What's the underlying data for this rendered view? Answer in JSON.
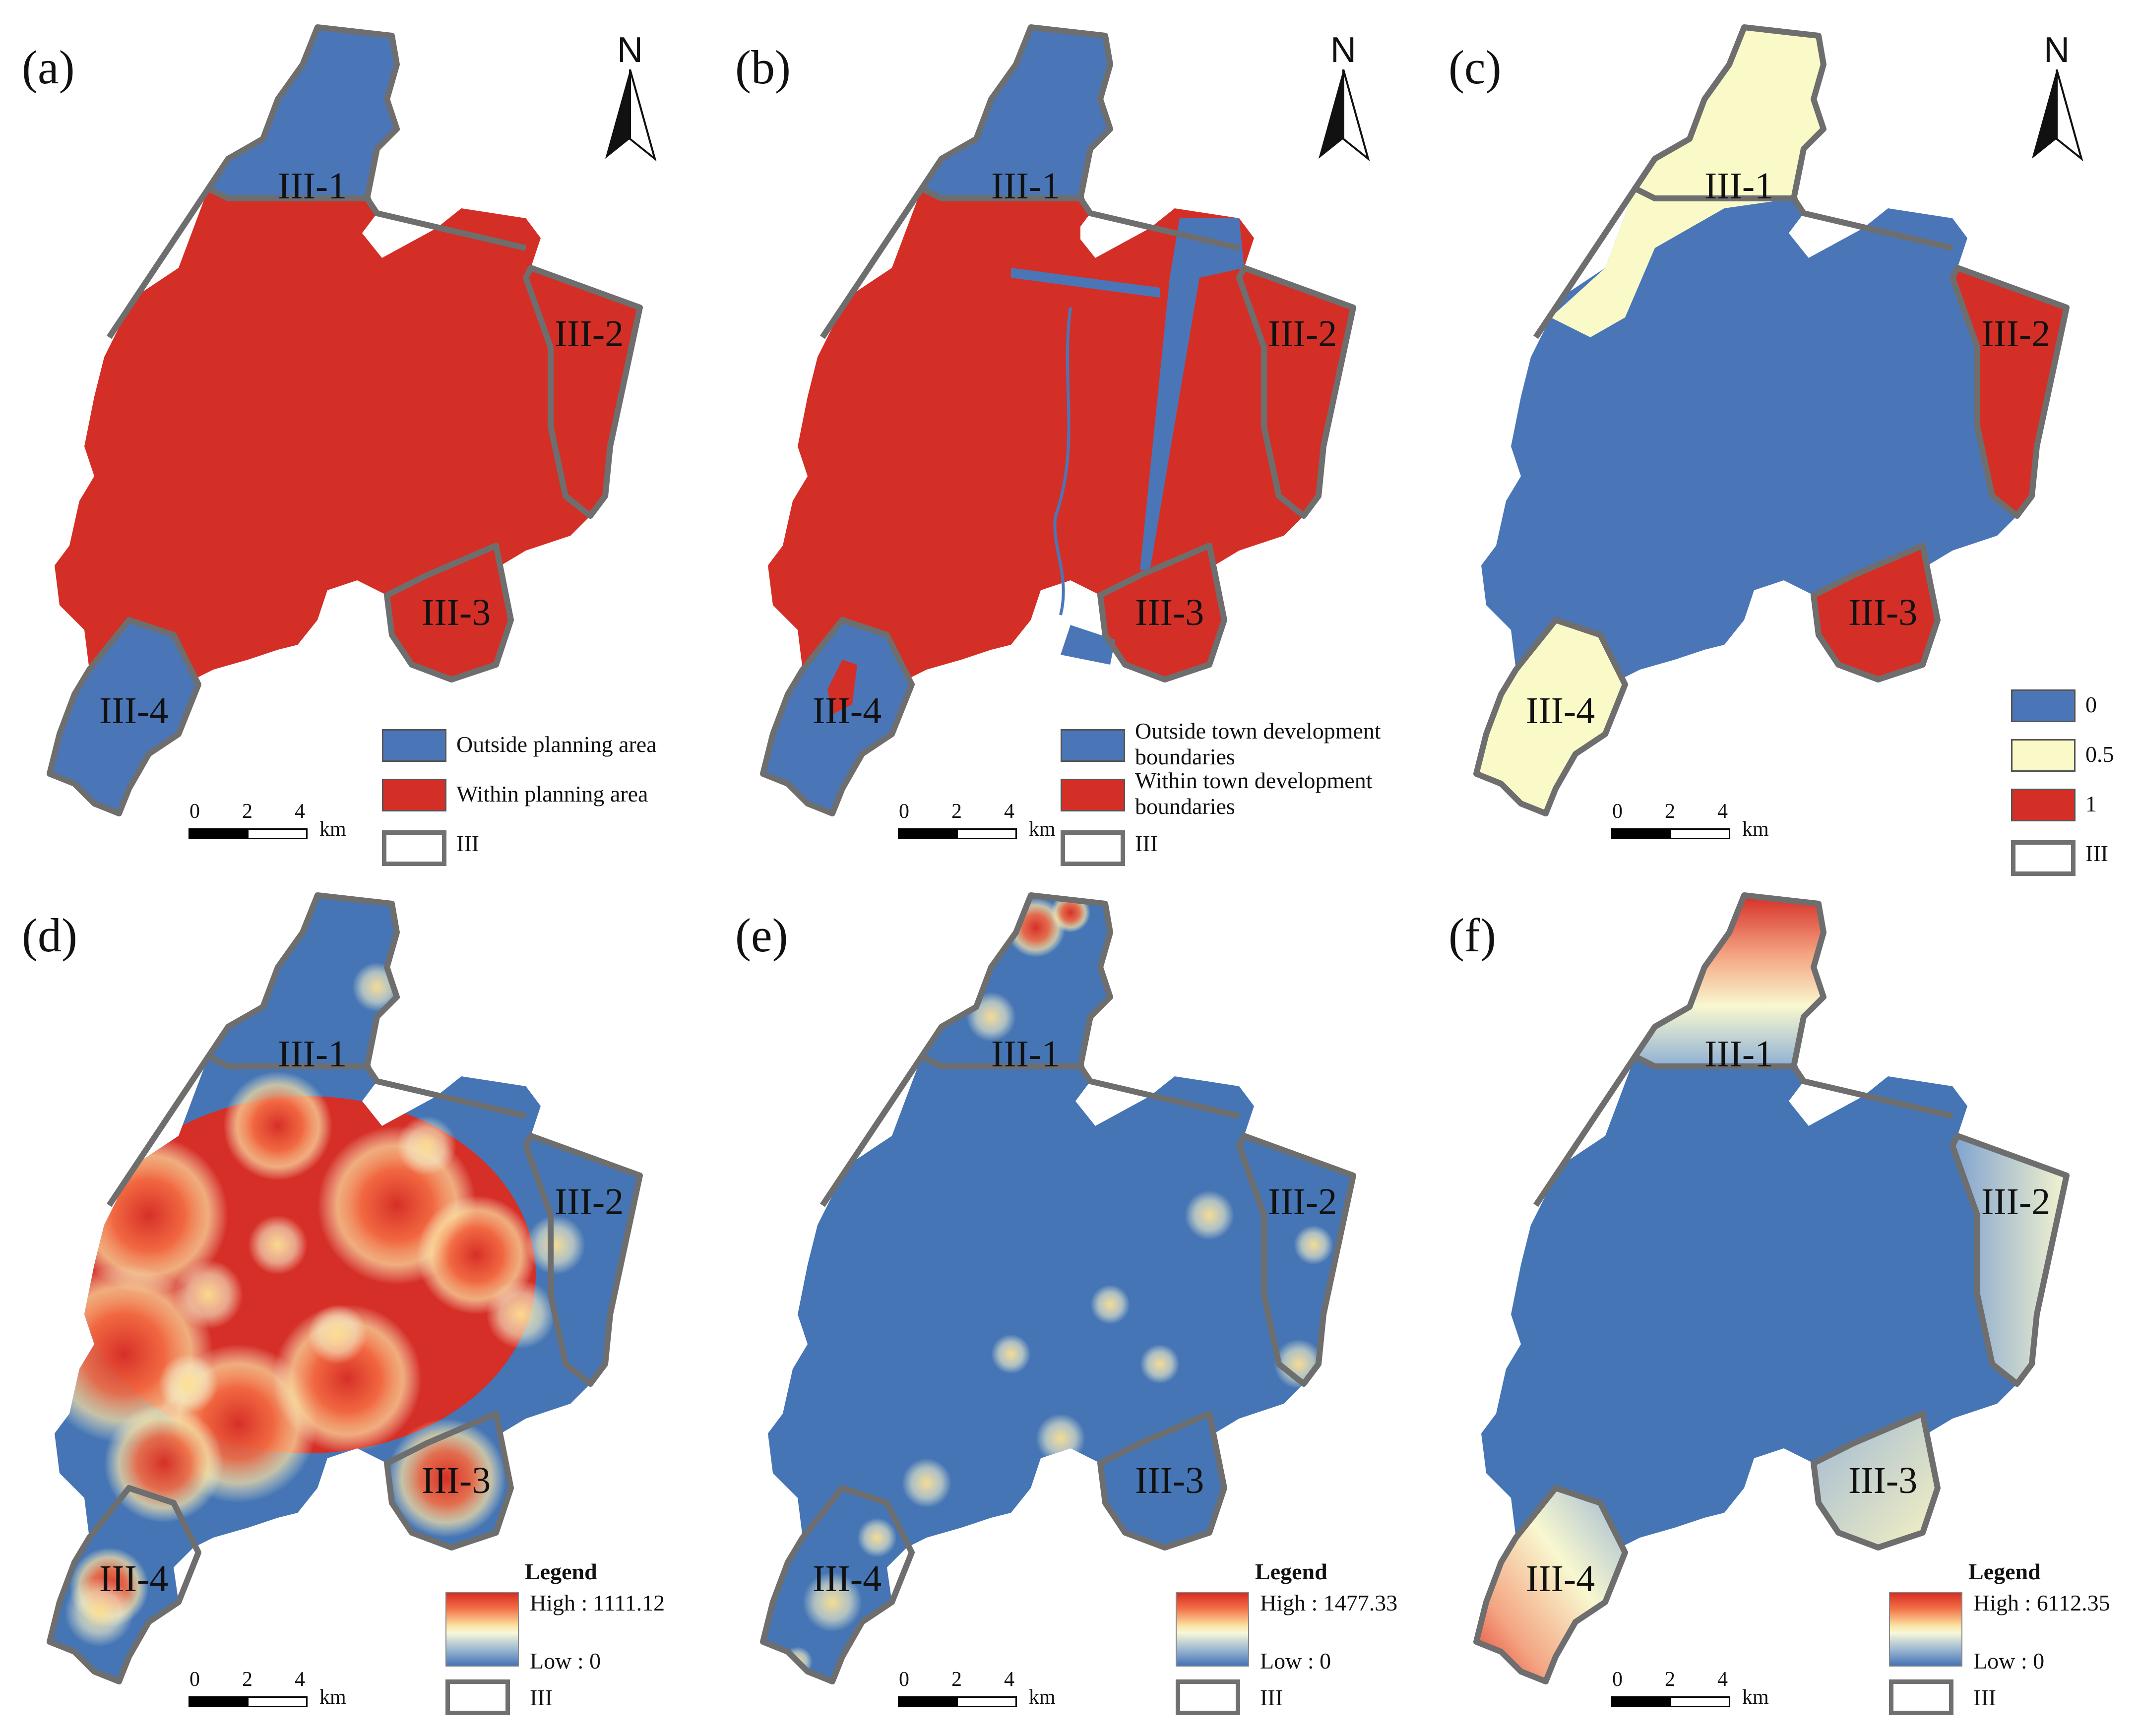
{
  "colors": {
    "outside": "#4a76b8",
    "within": "#d42f27",
    "mid": "#fafac8",
    "boundary": "#6e6e6e",
    "ramp_high": "#d62f27",
    "ramp_mid": "#f8f8d8",
    "ramp_low": "#4575b4"
  },
  "north_label": "N",
  "scale": {
    "ticks": [
      "0",
      "2",
      "4"
    ],
    "unit": "km"
  },
  "zones": [
    "III-1",
    "III-2",
    "III-3",
    "III-4"
  ],
  "panels": [
    {
      "label": "(a)",
      "type": "categorical",
      "legend": [
        {
          "color": "#4a76b8",
          "text": "Outside planning area"
        },
        {
          "color": "#d42f27",
          "text": "Within planning area"
        },
        {
          "color": "boundary",
          "text": "III"
        }
      ]
    },
    {
      "label": "(b)",
      "type": "categorical",
      "legend": [
        {
          "color": "#4a76b8",
          "text": "Outside town development boundaries"
        },
        {
          "color": "#d42f27",
          "text": "Within town development boundaries"
        },
        {
          "color": "boundary",
          "text": "III"
        }
      ]
    },
    {
      "label": "(c)",
      "type": "categorical",
      "legend": [
        {
          "color": "#4a76b8",
          "text": "0"
        },
        {
          "color": "#fafac8",
          "text": "0.5"
        },
        {
          "color": "#d42f27",
          "text": "1"
        },
        {
          "color": "boundary",
          "text": "III"
        }
      ]
    },
    {
      "label": "(d)",
      "type": "continuous",
      "legend": {
        "title": "Legend",
        "high": "High : 1111.12",
        "low": "Low : 0",
        "boundary": "III"
      }
    },
    {
      "label": "(e)",
      "type": "continuous",
      "legend": {
        "title": "Legend",
        "high": "High : 1477.33",
        "low": "Low : 0",
        "boundary": "III"
      }
    },
    {
      "label": "(f)",
      "type": "continuous",
      "legend": {
        "title": "Legend",
        "high": "High : 6112.35",
        "low": "Low : 0",
        "boundary": "III"
      }
    }
  ]
}
